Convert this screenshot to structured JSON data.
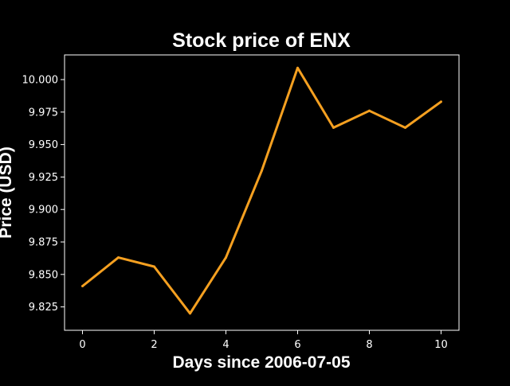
{
  "chart_data": {
    "type": "line",
    "title": "Stock price of ENX",
    "xlabel": "Days since 2006-07-05",
    "ylabel": "Price (USD)",
    "x": [
      0,
      1,
      2,
      3,
      4,
      5,
      6,
      7,
      8,
      9,
      10
    ],
    "series": [
      {
        "values": [
          9.841,
          9.863,
          9.856,
          9.82,
          9.863,
          9.93,
          10.009,
          9.963,
          9.976,
          9.963,
          9.983
        ],
        "color": "#f5a020"
      }
    ],
    "xlim": [
      -0.5,
      10.5
    ],
    "ylim": [
      9.807,
      10.019
    ],
    "xticks": [
      "0",
      "2",
      "4",
      "6",
      "8",
      "10"
    ],
    "yticks": [
      "9.825",
      "9.850",
      "9.875",
      "9.900",
      "9.925",
      "9.950",
      "9.975",
      "10.000"
    ],
    "grid": false,
    "background": "#000000",
    "foreground": "#ffffff"
  }
}
